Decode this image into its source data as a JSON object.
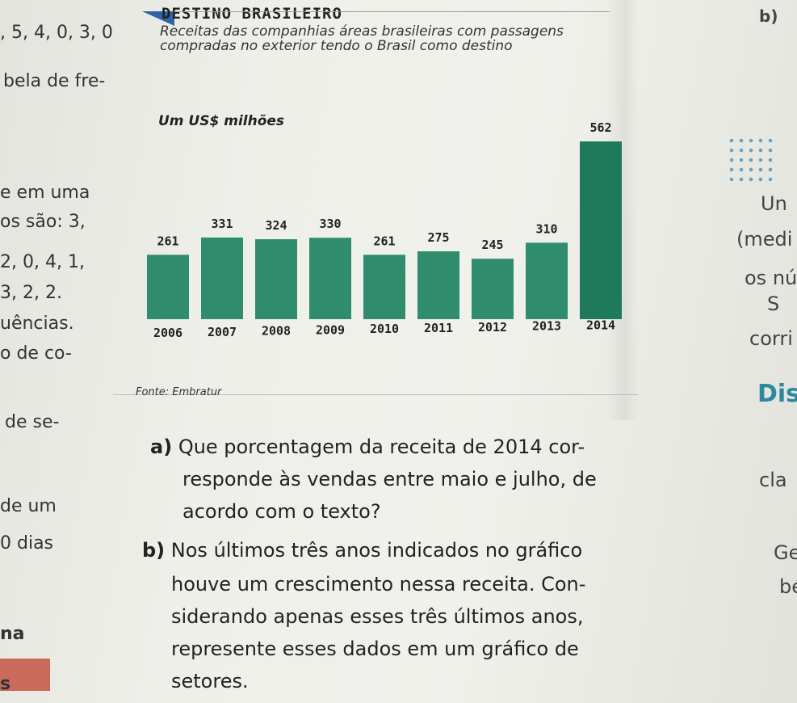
{
  "left_margin": {
    "lines": [
      ", 5, 4, 0, 3, 0",
      "bela de fre-",
      "e em uma",
      "os são: 3,",
      "2, 0, 4, 1,",
      "3, 2, 2.",
      "uências.",
      "o de co-",
      "de se-",
      "de um",
      "0 dias",
      "na",
      "s"
    ]
  },
  "right_margin": {
    "lines": [
      "b)",
      "Un",
      "(medi",
      "os nú",
      "S",
      "corri",
      "Dis",
      "cla",
      "Ge",
      "bé"
    ]
  },
  "chart_data": {
    "type": "bar",
    "title": "DESTINO BRASILEIRO",
    "subtitle": "Receitas das companhias áreas brasileiras com passagens compradas no exterior tendo o Brasil como destino",
    "ylabel": "Um US$ milhões",
    "source": "Fonte: Embratur",
    "categories": [
      "2006",
      "2007",
      "2008",
      "2009",
      "2010",
      "2011",
      "2012",
      "2013",
      "2014"
    ],
    "values": [
      261,
      331,
      324,
      330,
      261,
      275,
      245,
      310,
      562
    ],
    "ylim": [
      0,
      600
    ],
    "bar_color": "#2f8d6e",
    "highlight_color": "#1f7a5c",
    "grid": false
  },
  "questions": {
    "a": {
      "label": "a)",
      "lines": [
        "Que porcentagem da receita de 2014 cor-",
        "responde às vendas entre maio e julho, de",
        "acordo com o texto?"
      ]
    },
    "b": {
      "label": "b)",
      "lines": [
        "Nos últimos três anos indicados no gráfico",
        "houve um crescimento nessa receita. Con-",
        "siderando apenas esses três últimos anos,",
        "represente esses dados em um gráfico de",
        "setores."
      ]
    }
  }
}
